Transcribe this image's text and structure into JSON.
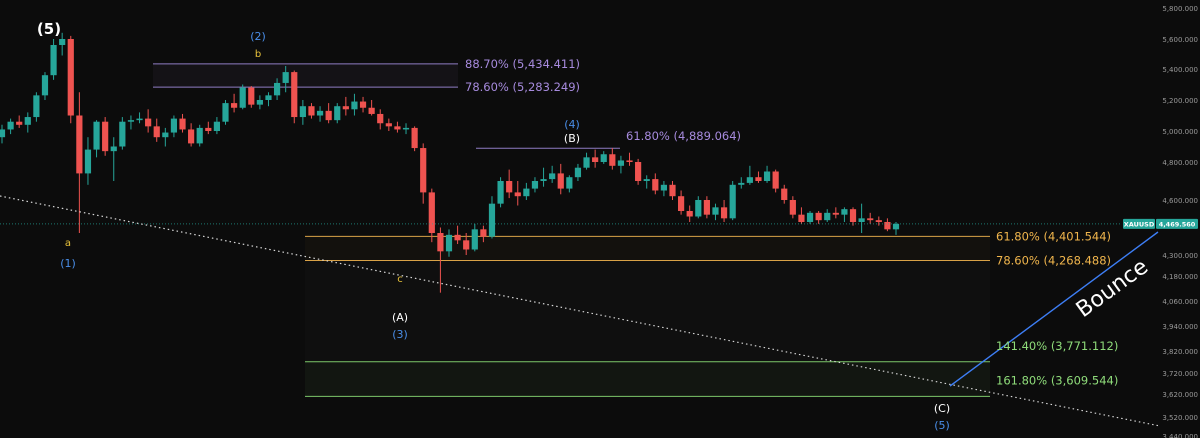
{
  "chart_data": {
    "type": "candlestick",
    "symbol": "XAUUSD",
    "last_price": "4,469.560",
    "ylim": [
      3440,
      5900
    ],
    "y_ticks": [
      "5,800.000",
      "5,600.000",
      "5,400.000",
      "5,200.000",
      "5,000.000",
      "4,800.000",
      "4,600.000",
      "4,300.000",
      "4,180.000",
      "4,060.000",
      "3,940.000",
      "3,820.000",
      "3,720.000",
      "3,620.000",
      "3,520.000",
      "3,440.000"
    ],
    "y_tick_values": [
      5800,
      5600,
      5400,
      5200,
      5000,
      4800,
      4600,
      4300,
      4180,
      4060,
      3940,
      3820,
      3720,
      3620,
      3520,
      3440
    ],
    "candles": [
      [
        4960,
        5040,
        4920,
        5010
      ],
      [
        5010,
        5080,
        4980,
        5060
      ],
      [
        5060,
        5100,
        5020,
        5040
      ],
      [
        5040,
        5120,
        4990,
        5090
      ],
      [
        5090,
        5250,
        5060,
        5230
      ],
      [
        5230,
        5380,
        5200,
        5360
      ],
      [
        5360,
        5600,
        5330,
        5560
      ],
      [
        5560,
        5640,
        5490,
        5600
      ],
      [
        5600,
        5620,
        5050,
        5100
      ],
      [
        5100,
        5250,
        4420,
        4740
      ],
      [
        4740,
        4960,
        4680,
        4880
      ],
      [
        4880,
        5070,
        4830,
        5060
      ],
      [
        5060,
        5090,
        4840,
        4870
      ],
      [
        4870,
        4960,
        4700,
        4900
      ],
      [
        4900,
        5090,
        4880,
        5060
      ],
      [
        5060,
        5100,
        5010,
        5070
      ],
      [
        5070,
        5120,
        5050,
        5080
      ],
      [
        5080,
        5140,
        4990,
        5030
      ],
      [
        5030,
        5080,
        4930,
        4960
      ],
      [
        4960,
        5020,
        4900,
        4990
      ],
      [
        4990,
        5100,
        4960,
        5080
      ],
      [
        5080,
        5110,
        4990,
        5010
      ],
      [
        5010,
        5050,
        4900,
        4920
      ],
      [
        4920,
        5040,
        4900,
        5020
      ],
      [
        5020,
        5060,
        4980,
        5000
      ],
      [
        5000,
        5090,
        4980,
        5060
      ],
      [
        5060,
        5200,
        5040,
        5180
      ],
      [
        5180,
        5240,
        5120,
        5150
      ],
      [
        5150,
        5300,
        5140,
        5280
      ],
      [
        5280,
        5290,
        5150,
        5170
      ],
      [
        5170,
        5230,
        5140,
        5200
      ],
      [
        5200,
        5250,
        5160,
        5230
      ],
      [
        5230,
        5340,
        5200,
        5310
      ],
      [
        5310,
        5420,
        5250,
        5380
      ],
      [
        5380,
        5390,
        5050,
        5090
      ],
      [
        5090,
        5200,
        5040,
        5160
      ],
      [
        5160,
        5180,
        5080,
        5100
      ],
      [
        5100,
        5160,
        5060,
        5130
      ],
      [
        5130,
        5180,
        5050,
        5070
      ],
      [
        5070,
        5180,
        5050,
        5160
      ],
      [
        5160,
        5220,
        5100,
        5140
      ],
      [
        5140,
        5240,
        5100,
        5190
      ],
      [
        5190,
        5220,
        5120,
        5150
      ],
      [
        5150,
        5200,
        5100,
        5110
      ],
      [
        5110,
        5140,
        5010,
        5050
      ],
      [
        5050,
        5080,
        5000,
        5030
      ],
      [
        5030,
        5060,
        4990,
        5010
      ],
      [
        5010,
        5050,
        4980,
        5020
      ],
      [
        5020,
        5030,
        4870,
        4890
      ],
      [
        4890,
        4920,
        4580,
        4640
      ],
      [
        4640,
        4660,
        4370,
        4420
      ],
      [
        4420,
        4450,
        4100,
        4320
      ],
      [
        4320,
        4440,
        4290,
        4410
      ],
      [
        4410,
        4460,
        4360,
        4380
      ],
      [
        4380,
        4420,
        4300,
        4330
      ],
      [
        4330,
        4470,
        4320,
        4440
      ],
      [
        4440,
        4460,
        4370,
        4400
      ],
      [
        4400,
        4620,
        4390,
        4580
      ],
      [
        4580,
        4720,
        4560,
        4700
      ],
      [
        4700,
        4760,
        4610,
        4640
      ],
      [
        4640,
        4700,
        4570,
        4620
      ],
      [
        4620,
        4690,
        4600,
        4660
      ],
      [
        4660,
        4720,
        4640,
        4700
      ],
      [
        4700,
        4770,
        4670,
        4710
      ],
      [
        4710,
        4780,
        4690,
        4740
      ],
      [
        4740,
        4790,
        4630,
        4660
      ],
      [
        4660,
        4730,
        4640,
        4720
      ],
      [
        4720,
        4790,
        4700,
        4770
      ],
      [
        4770,
        4860,
        4760,
        4830
      ],
      [
        4830,
        4880,
        4770,
        4800
      ],
      [
        4800,
        4870,
        4790,
        4850
      ],
      [
        4850,
        4890,
        4760,
        4780
      ],
      [
        4780,
        4840,
        4740,
        4810
      ],
      [
        4810,
        4860,
        4780,
        4800
      ],
      [
        4800,
        4820,
        4680,
        4700
      ],
      [
        4700,
        4730,
        4660,
        4710
      ],
      [
        4710,
        4740,
        4630,
        4650
      ],
      [
        4650,
        4700,
        4620,
        4680
      ],
      [
        4680,
        4700,
        4600,
        4620
      ],
      [
        4620,
        4650,
        4520,
        4540
      ],
      [
        4540,
        4570,
        4480,
        4510
      ],
      [
        4510,
        4620,
        4500,
        4600
      ],
      [
        4600,
        4620,
        4500,
        4520
      ],
      [
        4520,
        4580,
        4490,
        4560
      ],
      [
        4560,
        4600,
        4480,
        4500
      ],
      [
        4500,
        4700,
        4490,
        4680
      ],
      [
        4680,
        4720,
        4660,
        4690
      ],
      [
        4690,
        4780,
        4680,
        4720
      ],
      [
        4720,
        4750,
        4690,
        4700
      ],
      [
        4700,
        4780,
        4690,
        4750
      ],
      [
        4750,
        4760,
        4640,
        4660
      ],
      [
        4660,
        4680,
        4580,
        4600
      ],
      [
        4600,
        4620,
        4500,
        4520
      ],
      [
        4520,
        4560,
        4470,
        4480
      ],
      [
        4480,
        4540,
        4470,
        4530
      ],
      [
        4530,
        4540,
        4470,
        4490
      ],
      [
        4490,
        4550,
        4480,
        4530
      ],
      [
        4530,
        4560,
        4500,
        4520
      ],
      [
        4520,
        4560,
        4480,
        4550
      ],
      [
        4550,
        4560,
        4460,
        4480
      ],
      [
        4480,
        4580,
        4420,
        4500
      ],
      [
        4500,
        4530,
        4470,
        4490
      ],
      [
        4490,
        4510,
        4460,
        4480
      ],
      [
        4480,
        4500,
        4430,
        4440
      ],
      [
        4440,
        4480,
        4410,
        4470
      ]
    ],
    "fib_levels": [
      {
        "label": "88.70% (5,434.411)",
        "value": 5434.411,
        "color": "#a78bde",
        "zone": "b"
      },
      {
        "label": "78.60% (5,283.249)",
        "value": 5283.249,
        "color": "#a78bde",
        "zone": "b"
      },
      {
        "label": "61.80% (4,889.064)",
        "value": 4889.064,
        "color": "#a78bde",
        "zone": "B"
      },
      {
        "label": "61.80% (4,401.544)",
        "value": 4401.544,
        "color": "#f0b54c",
        "zone": "target"
      },
      {
        "label": "78.60% (4,268.488)",
        "value": 4268.488,
        "color": "#f0b54c",
        "zone": "target"
      },
      {
        "label": "141.40% (3,771.112)",
        "value": 3771.112,
        "color": "#8fdc7a",
        "zone": "C"
      },
      {
        "label": "161.80% (3,609.544)",
        "value": 3609.544,
        "color": "#8fdc7a",
        "zone": "C"
      }
    ],
    "wave_labels": [
      {
        "text": "(5)",
        "style": "big"
      },
      {
        "text": "a",
        "style": "yellow"
      },
      {
        "text": "(1)",
        "style": "blue"
      },
      {
        "text": "(2)",
        "style": "blue"
      },
      {
        "text": "b",
        "style": "yellow"
      },
      {
        "text": "(4)",
        "style": "blue"
      },
      {
        "text": "(B)",
        "style": "white"
      },
      {
        "text": "c",
        "style": "yellow"
      },
      {
        "text": "(A)",
        "style": "white"
      },
      {
        "text": "(3)",
        "style": "blue"
      },
      {
        "text": "(C)",
        "style": "white"
      },
      {
        "text": "(5)",
        "style": "blue"
      }
    ],
    "annotation": "Bounce",
    "colors": {
      "up": "#26a69a",
      "down": "#ef5350",
      "background": "#0c0c0c",
      "projection": "#3d7ef5"
    }
  }
}
